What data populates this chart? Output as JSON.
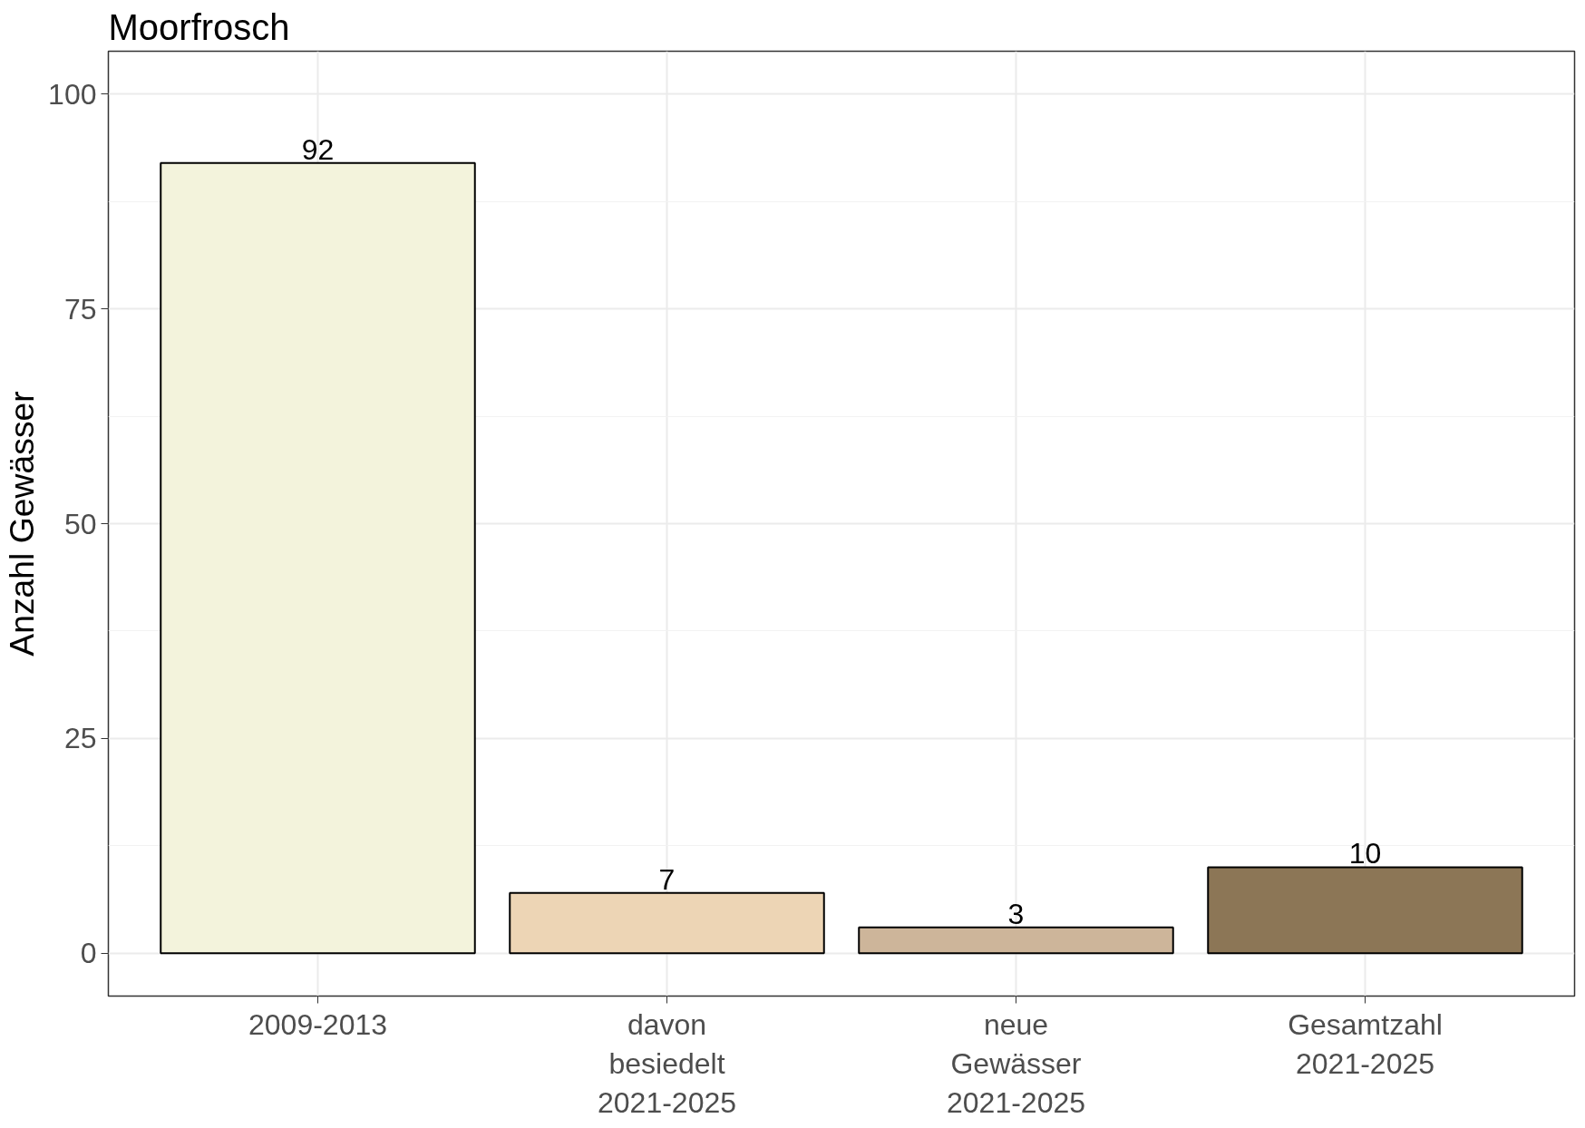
{
  "chart_data": {
    "type": "bar",
    "title": "Moorfrosch",
    "ylabel": "Anzahl Gewässer",
    "categories": [
      "2009-2013",
      "davon\nbesiedelt\n2021-2025",
      "neue\nGewässer\n2021-2025",
      "Gesamtzahl\n2021-2025"
    ],
    "values": [
      92,
      7,
      3,
      10
    ],
    "colors": [
      "#f3f3dc",
      "#edd5b5",
      "#cdb59a",
      "#8c7656"
    ],
    "ylim": [
      -5,
      105
    ],
    "yticks": [
      0,
      25,
      50,
      75,
      100
    ],
    "grid": true,
    "data_labels": true
  }
}
